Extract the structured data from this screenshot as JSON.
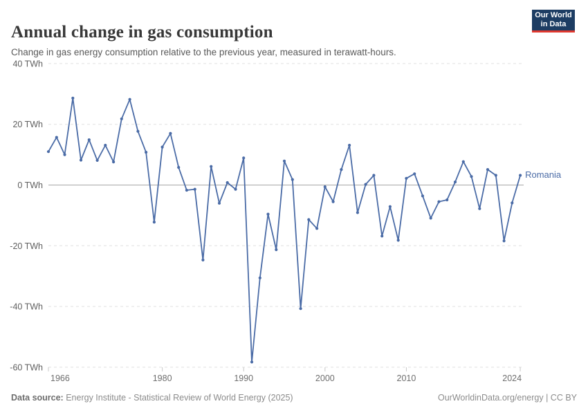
{
  "header": {
    "title": "Annual change in gas consumption",
    "subtitle": "Change in gas energy consumption relative to the previous year, measured in terawatt-hours."
  },
  "logo": {
    "line1": "Our World",
    "line2": "in Data",
    "bg_color": "#1d3d63",
    "stripe_color": "#e0392f"
  },
  "chart_data": {
    "type": "line",
    "title": "Annual change in gas consumption",
    "series_label": "Romania",
    "unit": "TWh",
    "line_color": "#4a6ba6",
    "grid": "dashed horizontal",
    "ylim": [
      -63,
      43
    ],
    "xlim": [
      1966,
      2024
    ],
    "yticks": [
      {
        "value": 40,
        "label": "40 TWh"
      },
      {
        "value": 20,
        "label": "20 TWh"
      },
      {
        "value": 0,
        "label": "0 TWh"
      },
      {
        "value": -20,
        "label": "-20 TWh"
      },
      {
        "value": -40,
        "label": "-40 TWh"
      },
      {
        "value": -60,
        "label": "-60 TWh"
      }
    ],
    "xticks": [
      {
        "value": 1966,
        "label": "1966",
        "anchor": "start"
      },
      {
        "value": 1980,
        "label": "1980",
        "anchor": "middle"
      },
      {
        "value": 1990,
        "label": "1990",
        "anchor": "middle"
      },
      {
        "value": 2000,
        "label": "2000",
        "anchor": "middle"
      },
      {
        "value": 2010,
        "label": "2010",
        "anchor": "middle"
      },
      {
        "value": 2024,
        "label": "2024",
        "anchor": "end"
      }
    ],
    "x": [
      1966,
      1967,
      1968,
      1969,
      1970,
      1971,
      1972,
      1973,
      1974,
      1975,
      1976,
      1977,
      1978,
      1979,
      1980,
      1981,
      1982,
      1983,
      1984,
      1985,
      1986,
      1987,
      1988,
      1989,
      1990,
      1991,
      1992,
      1993,
      1994,
      1995,
      1996,
      1997,
      1998,
      1999,
      2000,
      2001,
      2002,
      2003,
      2004,
      2005,
      2006,
      2007,
      2008,
      2009,
      2010,
      2011,
      2012,
      2013,
      2014,
      2015,
      2016,
      2017,
      2018,
      2019,
      2020,
      2021,
      2022,
      2023,
      2024
    ],
    "values": [
      11,
      15.7,
      10,
      28.6,
      8.2,
      14.9,
      8.1,
      13.1,
      7.6,
      21.8,
      28.2,
      17.7,
      10.8,
      -12.2,
      12.5,
      17,
      5.8,
      -1.7,
      -1.4,
      -24.7,
      6.1,
      -6,
      0.8,
      -1.4,
      8.9,
      -58.3,
      -30.6,
      -9.6,
      -21.3,
      7.9,
      1.8,
      -40.7,
      -11.4,
      -14.3,
      -0.6,
      -5.5,
      5.1,
      13.1,
      -9.1,
      0.2,
      3.2,
      -16.8,
      -7.1,
      -18.2,
      2.2,
      3.7,
      -3.6,
      -10.9,
      -5.5,
      -4.9,
      1,
      7.7,
      2.8,
      -7.8,
      5.1,
      3.2,
      -18.4,
      -5.9,
      3.2
    ]
  },
  "footer": {
    "label": "Data source:",
    "source": " Energy Institute - Statistical Review of World Energy (2025)",
    "right": "OurWorldinData.org/energy | CC BY"
  }
}
